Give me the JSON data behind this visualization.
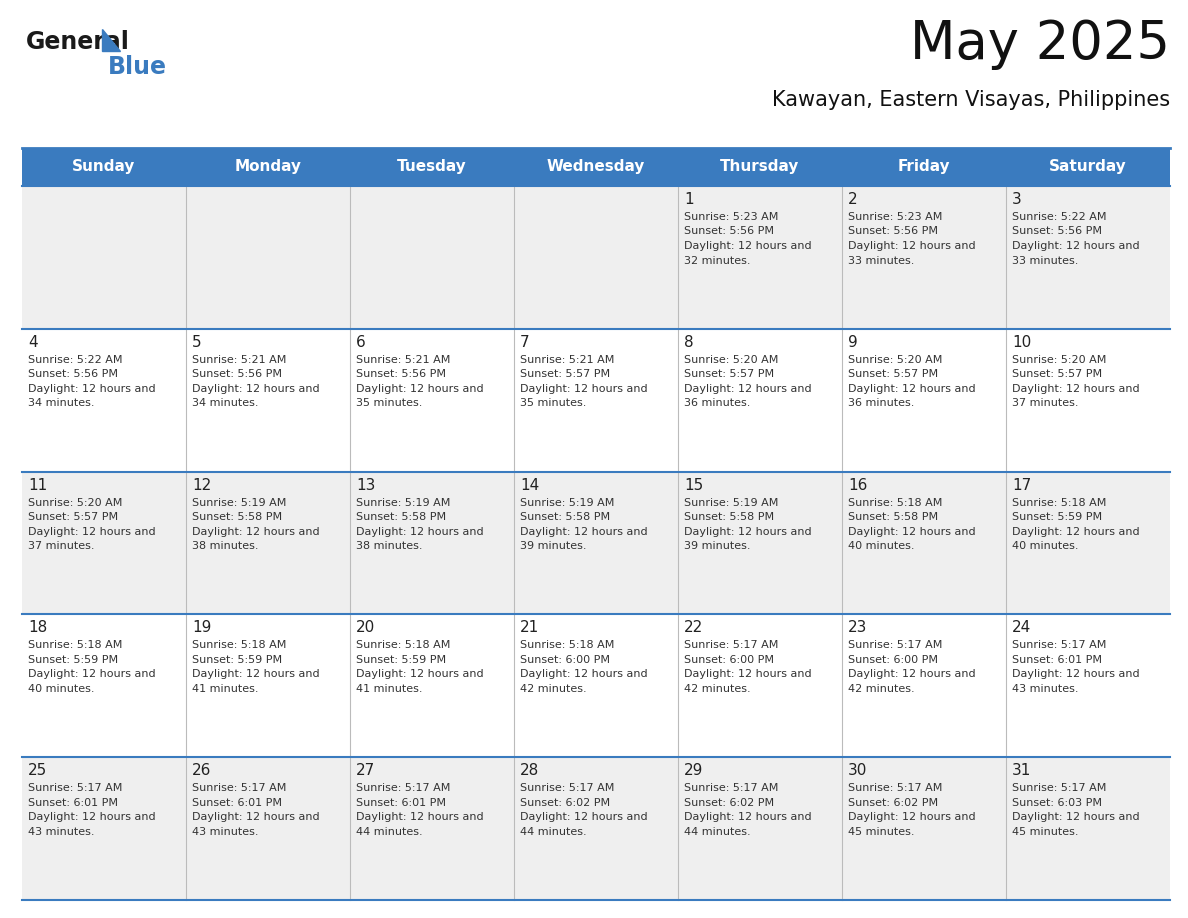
{
  "title": "May 2025",
  "subtitle": "Kawayan, Eastern Visayas, Philippines",
  "days_of_week": [
    "Sunday",
    "Monday",
    "Tuesday",
    "Wednesday",
    "Thursday",
    "Friday",
    "Saturday"
  ],
  "header_bg": "#3A7BBF",
  "header_text_color": "#FFFFFF",
  "row_bg_odd": "#EFEFEF",
  "row_bg_even": "#FFFFFF",
  "cell_text_color": "#333333",
  "day_num_color": "#222222",
  "separator_color": "#3A7BBF",
  "grid_line_color": "#BBBBBB",
  "calendar_data": [
    [
      null,
      null,
      null,
      null,
      {
        "day": 1,
        "sunrise": "5:23 AM",
        "sunset": "5:56 PM",
        "daylight": "12 hours and 32 minutes"
      },
      {
        "day": 2,
        "sunrise": "5:23 AM",
        "sunset": "5:56 PM",
        "daylight": "12 hours and 33 minutes"
      },
      {
        "day": 3,
        "sunrise": "5:22 AM",
        "sunset": "5:56 PM",
        "daylight": "12 hours and 33 minutes"
      }
    ],
    [
      {
        "day": 4,
        "sunrise": "5:22 AM",
        "sunset": "5:56 PM",
        "daylight": "12 hours and 34 minutes"
      },
      {
        "day": 5,
        "sunrise": "5:21 AM",
        "sunset": "5:56 PM",
        "daylight": "12 hours and 34 minutes"
      },
      {
        "day": 6,
        "sunrise": "5:21 AM",
        "sunset": "5:56 PM",
        "daylight": "12 hours and 35 minutes"
      },
      {
        "day": 7,
        "sunrise": "5:21 AM",
        "sunset": "5:57 PM",
        "daylight": "12 hours and 35 minutes"
      },
      {
        "day": 8,
        "sunrise": "5:20 AM",
        "sunset": "5:57 PM",
        "daylight": "12 hours and 36 minutes"
      },
      {
        "day": 9,
        "sunrise": "5:20 AM",
        "sunset": "5:57 PM",
        "daylight": "12 hours and 36 minutes"
      },
      {
        "day": 10,
        "sunrise": "5:20 AM",
        "sunset": "5:57 PM",
        "daylight": "12 hours and 37 minutes"
      }
    ],
    [
      {
        "day": 11,
        "sunrise": "5:20 AM",
        "sunset": "5:57 PM",
        "daylight": "12 hours and 37 minutes"
      },
      {
        "day": 12,
        "sunrise": "5:19 AM",
        "sunset": "5:58 PM",
        "daylight": "12 hours and 38 minutes"
      },
      {
        "day": 13,
        "sunrise": "5:19 AM",
        "sunset": "5:58 PM",
        "daylight": "12 hours and 38 minutes"
      },
      {
        "day": 14,
        "sunrise": "5:19 AM",
        "sunset": "5:58 PM",
        "daylight": "12 hours and 39 minutes"
      },
      {
        "day": 15,
        "sunrise": "5:19 AM",
        "sunset": "5:58 PM",
        "daylight": "12 hours and 39 minutes"
      },
      {
        "day": 16,
        "sunrise": "5:18 AM",
        "sunset": "5:58 PM",
        "daylight": "12 hours and 40 minutes"
      },
      {
        "day": 17,
        "sunrise": "5:18 AM",
        "sunset": "5:59 PM",
        "daylight": "12 hours and 40 minutes"
      }
    ],
    [
      {
        "day": 18,
        "sunrise": "5:18 AM",
        "sunset": "5:59 PM",
        "daylight": "12 hours and 40 minutes"
      },
      {
        "day": 19,
        "sunrise": "5:18 AM",
        "sunset": "5:59 PM",
        "daylight": "12 hours and 41 minutes"
      },
      {
        "day": 20,
        "sunrise": "5:18 AM",
        "sunset": "5:59 PM",
        "daylight": "12 hours and 41 minutes"
      },
      {
        "day": 21,
        "sunrise": "5:18 AM",
        "sunset": "6:00 PM",
        "daylight": "12 hours and 42 minutes"
      },
      {
        "day": 22,
        "sunrise": "5:17 AM",
        "sunset": "6:00 PM",
        "daylight": "12 hours and 42 minutes"
      },
      {
        "day": 23,
        "sunrise": "5:17 AM",
        "sunset": "6:00 PM",
        "daylight": "12 hours and 42 minutes"
      },
      {
        "day": 24,
        "sunrise": "5:17 AM",
        "sunset": "6:01 PM",
        "daylight": "12 hours and 43 minutes"
      }
    ],
    [
      {
        "day": 25,
        "sunrise": "5:17 AM",
        "sunset": "6:01 PM",
        "daylight": "12 hours and 43 minutes"
      },
      {
        "day": 26,
        "sunrise": "5:17 AM",
        "sunset": "6:01 PM",
        "daylight": "12 hours and 43 minutes"
      },
      {
        "day": 27,
        "sunrise": "5:17 AM",
        "sunset": "6:01 PM",
        "daylight": "12 hours and 44 minutes"
      },
      {
        "day": 28,
        "sunrise": "5:17 AM",
        "sunset": "6:02 PM",
        "daylight": "12 hours and 44 minutes"
      },
      {
        "day": 29,
        "sunrise": "5:17 AM",
        "sunset": "6:02 PM",
        "daylight": "12 hours and 44 minutes"
      },
      {
        "day": 30,
        "sunrise": "5:17 AM",
        "sunset": "6:02 PM",
        "daylight": "12 hours and 45 minutes"
      },
      {
        "day": 31,
        "sunrise": "5:17 AM",
        "sunset": "6:03 PM",
        "daylight": "12 hours and 45 minutes"
      }
    ]
  ],
  "logo_text1": "General",
  "logo_text2": "Blue",
  "logo_text1_color": "#1a1a1a",
  "logo_text2_color": "#3A7BBF",
  "logo_triangle_color": "#3A7BBF",
  "figwidth": 11.88,
  "figheight": 9.18,
  "dpi": 100
}
